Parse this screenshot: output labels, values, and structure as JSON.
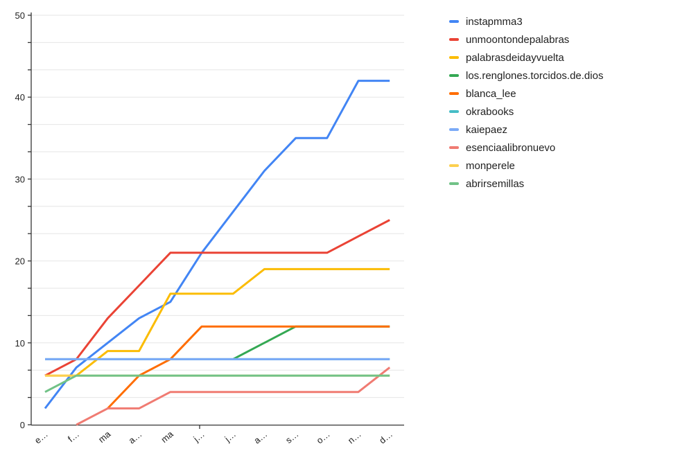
{
  "chart_data": {
    "type": "line",
    "title": "",
    "xlabel": "",
    "ylabel": "",
    "x_labels_displayed": [
      "e…",
      "f…",
      "ma",
      "a…",
      "ma",
      "j…",
      "j…",
      "a…",
      "s…",
      "o…",
      "n…",
      "d…"
    ],
    "y_tick_labels": [
      "0",
      "10",
      "20",
      "30",
      "40",
      "50"
    ],
    "y_ticks": [
      0,
      10,
      20,
      30,
      40,
      50
    ],
    "ylim": [
      0,
      50
    ],
    "minor_gridline_step": 3.3333,
    "grid": "horizontal",
    "legend_position": "right",
    "series": [
      {
        "name": "instapmma3",
        "color": "#4285F4",
        "values": [
          2,
          7,
          10,
          13,
          15,
          21,
          26,
          31,
          35,
          35,
          42,
          42
        ]
      },
      {
        "name": "unmoontondepalabras",
        "color": "#EA4335",
        "values": [
          6,
          8,
          13,
          17,
          21,
          21,
          21,
          21,
          21,
          21,
          23,
          25
        ]
      },
      {
        "name": "palabrasdeidayvuelta",
        "color": "#FBBC04",
        "values": [
          6,
          6,
          9,
          9,
          16,
          16,
          16,
          19,
          19,
          19,
          19,
          19
        ]
      },
      {
        "name": "los.renglones.torcidos.de.dios",
        "color": "#34A853",
        "values": [
          null,
          null,
          null,
          null,
          null,
          null,
          8,
          10,
          12,
          12,
          12,
          12
        ]
      },
      {
        "name": "blanca_lee",
        "color": "#FF6D01",
        "values": [
          null,
          null,
          2,
          6,
          8,
          12,
          12,
          12,
          12,
          12,
          12,
          12
        ]
      },
      {
        "name": "okrabooks",
        "color": "#46BDC6",
        "values": [
          8,
          8,
          8,
          8,
          8,
          8,
          8,
          8,
          8,
          8,
          8,
          8
        ]
      },
      {
        "name": "kaiepaez",
        "color": "#7BAAF7",
        "values": [
          8,
          8,
          8,
          8,
          8,
          8,
          8,
          8,
          8,
          8,
          8,
          8
        ]
      },
      {
        "name": "esenciaalibronuevo",
        "color": "#F07B72",
        "values": [
          null,
          0,
          2,
          2,
          4,
          4,
          4,
          4,
          4,
          4,
          4,
          7
        ]
      },
      {
        "name": "monperele",
        "color": "#FCD04F",
        "values": [
          6,
          6,
          6,
          6,
          6,
          6,
          6,
          6,
          6,
          6,
          6,
          6
        ]
      },
      {
        "name": "abrirsemillas",
        "color": "#71C287",
        "values": [
          4,
          6,
          6,
          6,
          6,
          6,
          6,
          6,
          6,
          6,
          6,
          6
        ]
      }
    ]
  },
  "colors": {
    "background": "#ffffff",
    "gridline": "#e6e6e6",
    "axis": "#333333",
    "axis_label": "#222222",
    "legend_text": "#212121"
  }
}
